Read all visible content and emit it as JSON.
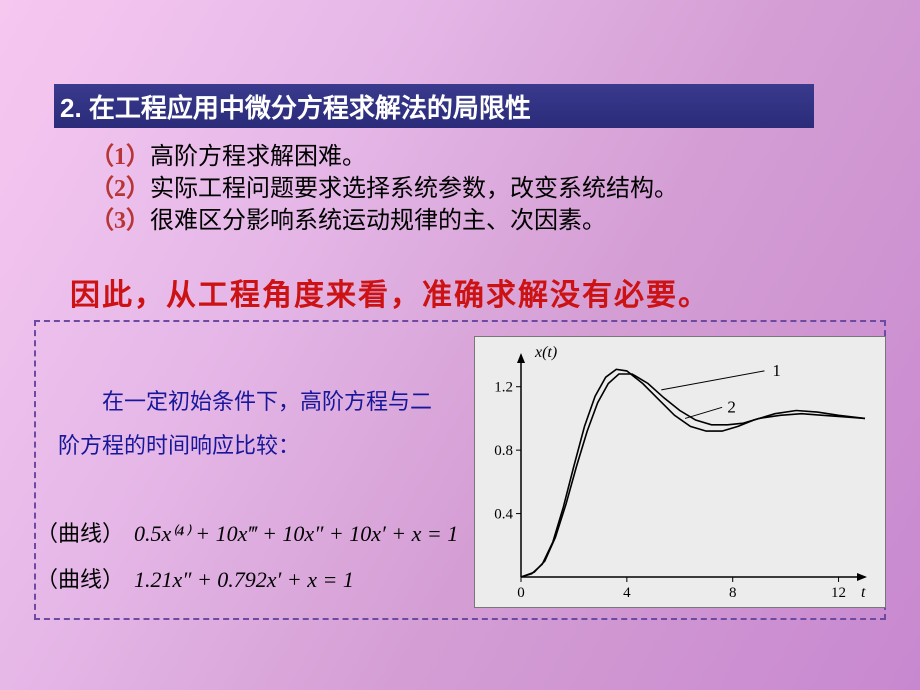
{
  "title": "2. 在工程应用中微分方程求解法的局限性",
  "bullets": [
    {
      "num": "（1）",
      "text": "高阶方程求解困难。"
    },
    {
      "num": "（2）",
      "text": "实际工程问题要求选择系统参数，改变系统结构。"
    },
    {
      "num": "（3）",
      "text": "很难区分影响系统运动规律的主、次因素。"
    }
  ],
  "conclusion": "因此，从工程角度来看，准确求解没有必要。",
  "lead": "在一定初始条件下，高阶方程与二阶方程的时间响应比较：",
  "eq1_label": "（曲线）",
  "eq1_math": "0.5x⁽⁴⁾ + 10x‴ + 10x″ + 10x′ + x = 1",
  "eq2_label": "（曲线）",
  "eq2_math": "1.21x″ + 0.792x′ + x = 1",
  "chart": {
    "xlabel": "t",
    "ylabel": "x(t)",
    "xlim": [
      0,
      13
    ],
    "ylim": [
      0,
      1.4
    ],
    "xticks": [
      0,
      4,
      8,
      12
    ],
    "yticks": [
      0,
      0.4,
      0.8,
      1.2
    ],
    "label1": "1",
    "label2": "2",
    "axis_color": "#000",
    "curve_color": "#000",
    "bg": "#ececec",
    "curve1": [
      [
        0,
        0
      ],
      [
        0.4,
        0.02
      ],
      [
        0.8,
        0.08
      ],
      [
        1.2,
        0.22
      ],
      [
        1.6,
        0.44
      ],
      [
        2.0,
        0.7
      ],
      [
        2.4,
        0.95
      ],
      [
        2.8,
        1.14
      ],
      [
        3.2,
        1.26
      ],
      [
        3.6,
        1.31
      ],
      [
        4.0,
        1.3
      ],
      [
        4.6,
        1.22
      ],
      [
        5.2,
        1.12
      ],
      [
        5.8,
        1.02
      ],
      [
        6.4,
        0.95
      ],
      [
        7.0,
        0.92
      ],
      [
        7.6,
        0.92
      ],
      [
        8.2,
        0.95
      ],
      [
        8.8,
        0.99
      ],
      [
        9.6,
        1.03
      ],
      [
        10.4,
        1.05
      ],
      [
        11.2,
        1.04
      ],
      [
        12.0,
        1.02
      ],
      [
        13.0,
        1.0
      ]
    ],
    "curve2": [
      [
        0,
        0
      ],
      [
        0.5,
        0.03
      ],
      [
        0.9,
        0.1
      ],
      [
        1.3,
        0.25
      ],
      [
        1.7,
        0.46
      ],
      [
        2.1,
        0.7
      ],
      [
        2.5,
        0.92
      ],
      [
        2.9,
        1.1
      ],
      [
        3.3,
        1.22
      ],
      [
        3.7,
        1.28
      ],
      [
        4.2,
        1.28
      ],
      [
        4.8,
        1.22
      ],
      [
        5.4,
        1.13
      ],
      [
        6.0,
        1.05
      ],
      [
        6.6,
        0.99
      ],
      [
        7.2,
        0.96
      ],
      [
        7.8,
        0.96
      ],
      [
        8.4,
        0.97
      ],
      [
        9.0,
        1.0
      ],
      [
        9.8,
        1.02
      ],
      [
        10.6,
        1.03
      ],
      [
        11.4,
        1.02
      ],
      [
        12.2,
        1.01
      ],
      [
        13.0,
        1.0
      ]
    ]
  }
}
